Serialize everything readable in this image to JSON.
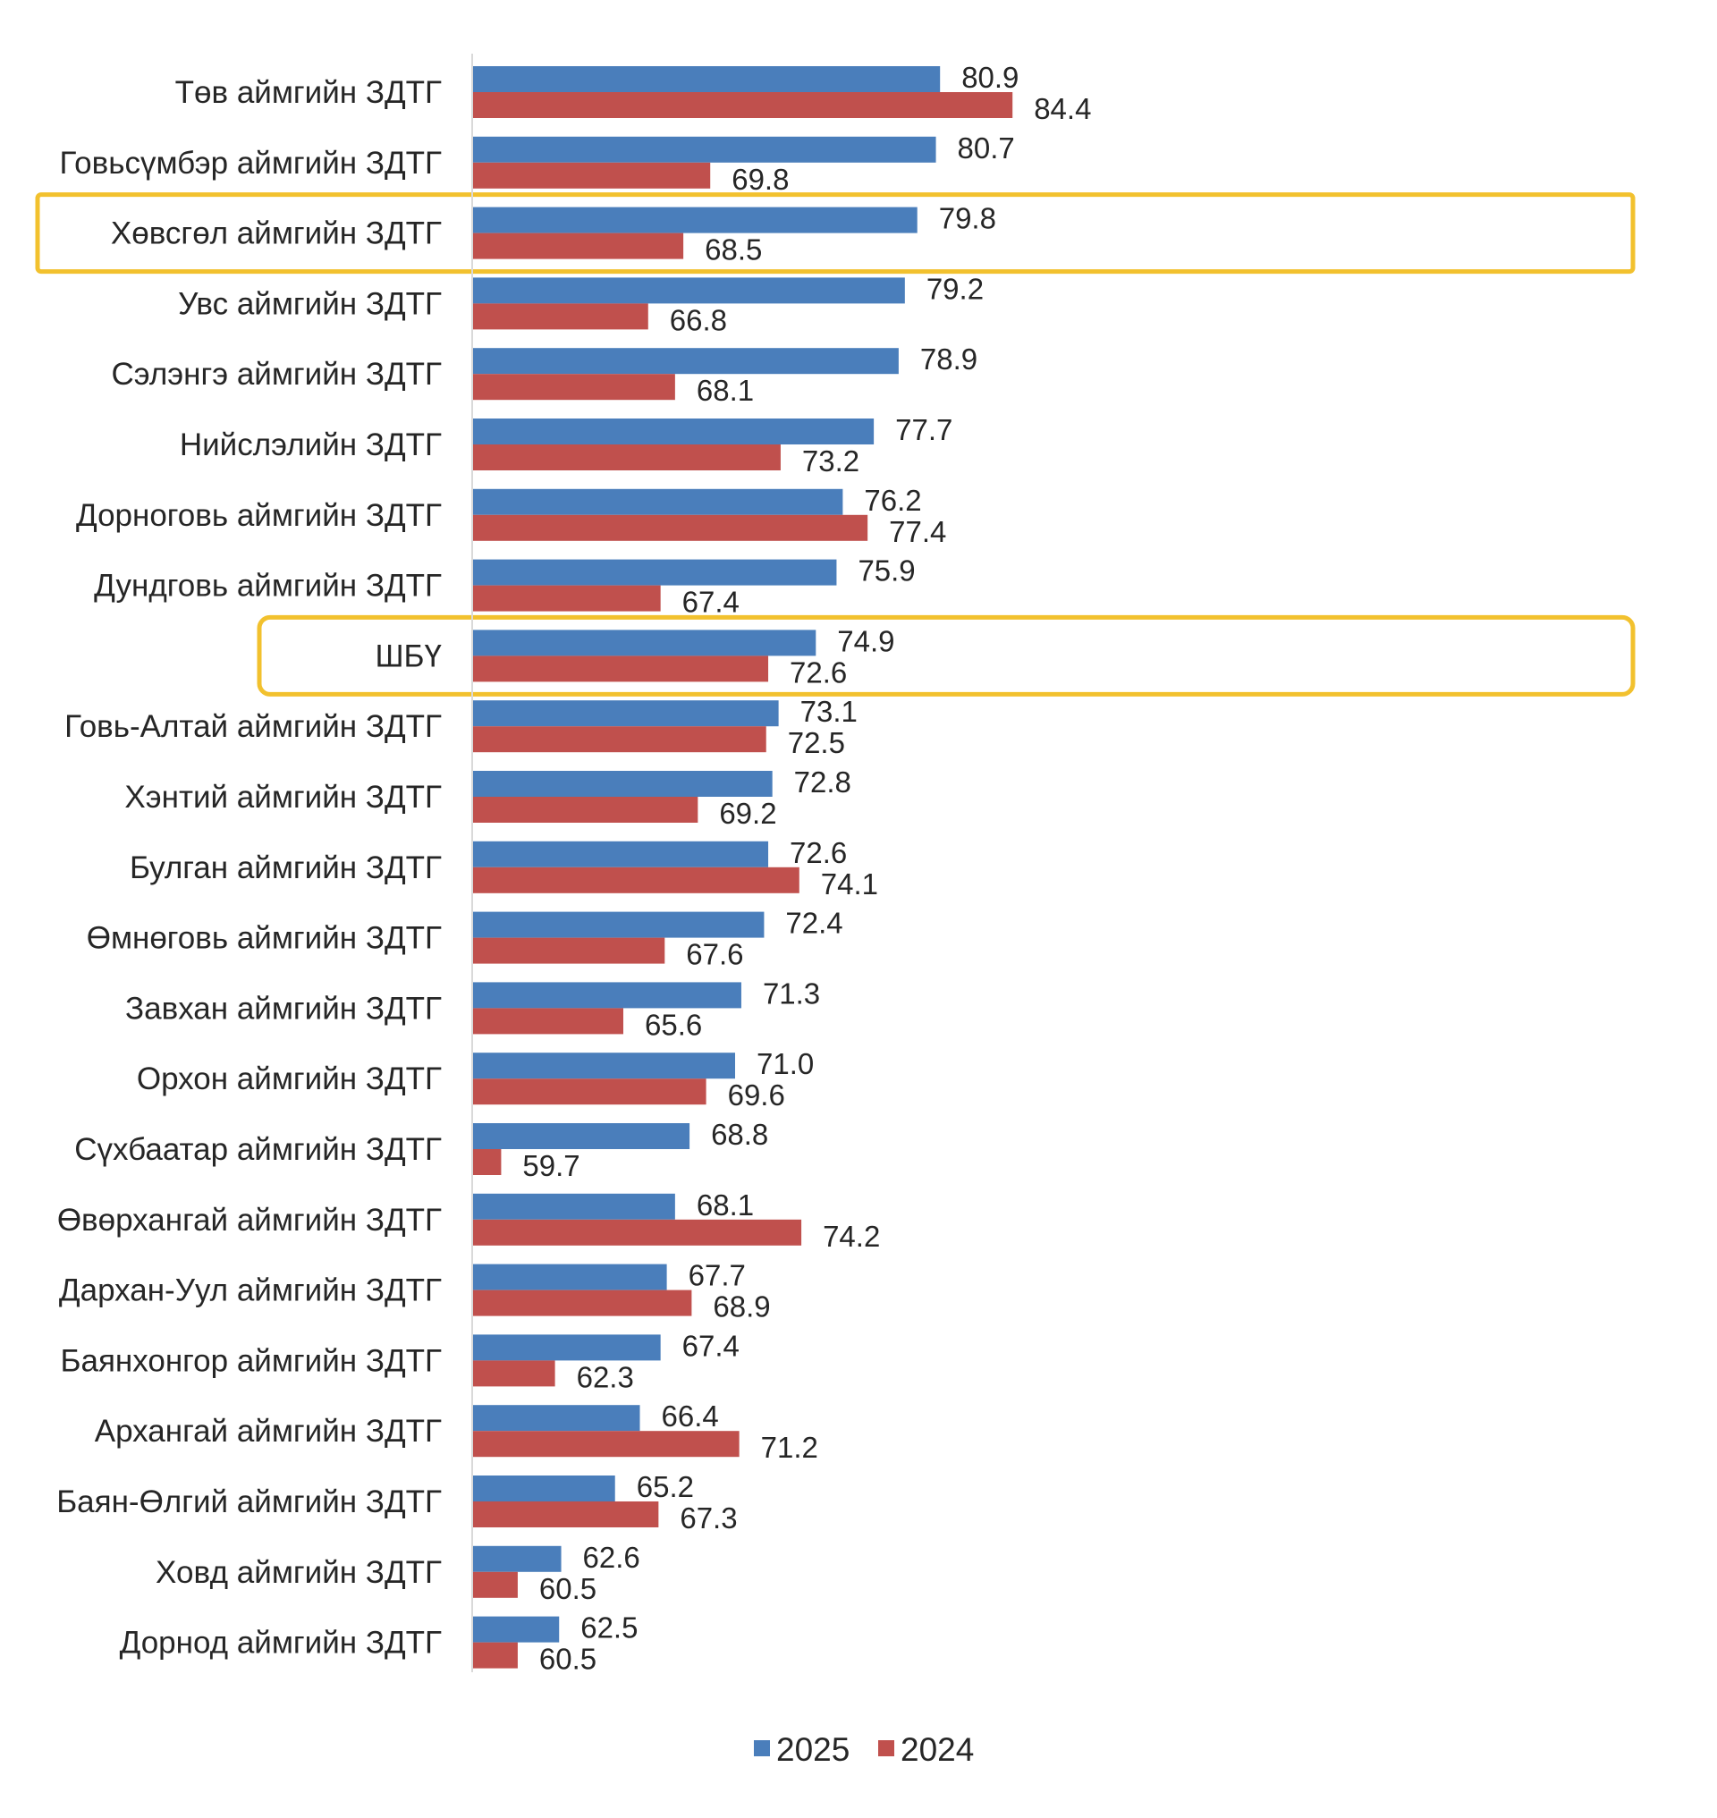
{
  "chart_data": {
    "type": "bar",
    "orientation": "horizontal",
    "title": "",
    "xlabel": "",
    "ylabel": "",
    "xlim": [
      58.3,
      90
    ],
    "grid": false,
    "legend_position": "bottom",
    "categories": [
      "Төв аймгийн ЗДТГ",
      "Говьсүмбэр аймгийн ЗДТГ",
      "Хөвсгөл аймгийн ЗДТГ",
      "Увс аймгийн ЗДТГ",
      "Сэлэнгэ аймгийн ЗДТГ",
      "Нийслэлийн ЗДТГ",
      "Дорноговь аймгийн ЗДТГ",
      "Дундговь аймгийн ЗДТГ",
      "ШБҮ",
      "Говь-Алтай аймгийн ЗДТГ",
      "Хэнтий аймгийн ЗДТГ",
      "Булган аймгийн ЗДТГ",
      "Өмнөговь аймгийн ЗДТГ",
      "Завхан аймгийн ЗДТГ",
      "Орхон аймгийн ЗДТГ",
      "Сүхбаатар аймгийн ЗДТГ",
      "Өвөрхангай аймгийн ЗДТГ",
      "Дархан-Уул аймгийн ЗДТГ",
      "Баянхонгор аймгийн ЗДТГ",
      "Архангай аймгийн ЗДТГ",
      "Баян-Өлгий аймгийн ЗДТГ",
      "Ховд аймгийн ЗДТГ",
      "Дорнод аймгийн ЗДТГ"
    ],
    "series": [
      {
        "name": "2025",
        "color": "#4a7ebb",
        "values": [
          80.9,
          80.7,
          79.8,
          79.2,
          78.9,
          77.7,
          76.2,
          75.9,
          74.9,
          73.1,
          72.8,
          72.6,
          72.4,
          71.3,
          71.0,
          68.8,
          68.1,
          67.7,
          67.4,
          66.4,
          65.2,
          62.6,
          62.5
        ],
        "labels": [
          "80.9",
          "80.7",
          "79.8",
          "79.2",
          "78.9",
          "77.7",
          "76.2",
          "75.9",
          "74.9",
          "73.1",
          "72.8",
          "72.6",
          "72.4",
          "71.3",
          "71.0",
          "68.8",
          "68.1",
          "67.7",
          "67.4",
          "66.4",
          "65.2",
          "62.6",
          "62.5"
        ]
      },
      {
        "name": "2024",
        "color": "#c0504d",
        "values": [
          84.4,
          69.8,
          68.5,
          66.8,
          68.1,
          73.2,
          77.4,
          67.4,
          72.6,
          72.5,
          69.2,
          74.1,
          67.6,
          65.6,
          69.6,
          59.7,
          74.2,
          68.9,
          62.3,
          71.2,
          67.3,
          60.5,
          60.5
        ],
        "labels": [
          "84.4",
          "69.8",
          "68.5",
          "66.8",
          "68.1",
          "73.2",
          "77.4",
          "67.4",
          "72.6",
          "72.5",
          "69.2",
          "74.1",
          "67.6",
          "65.6",
          "69.6",
          "59.7",
          "74.2",
          "68.9",
          "62.3",
          "71.2",
          "67.3",
          "60.5",
          "60.5"
        ]
      }
    ],
    "highlighted_categories": [
      "Хөвсгөл аймгийн ЗДТГ",
      "ШБҮ"
    ],
    "highlight_color": "#f2c12e"
  }
}
